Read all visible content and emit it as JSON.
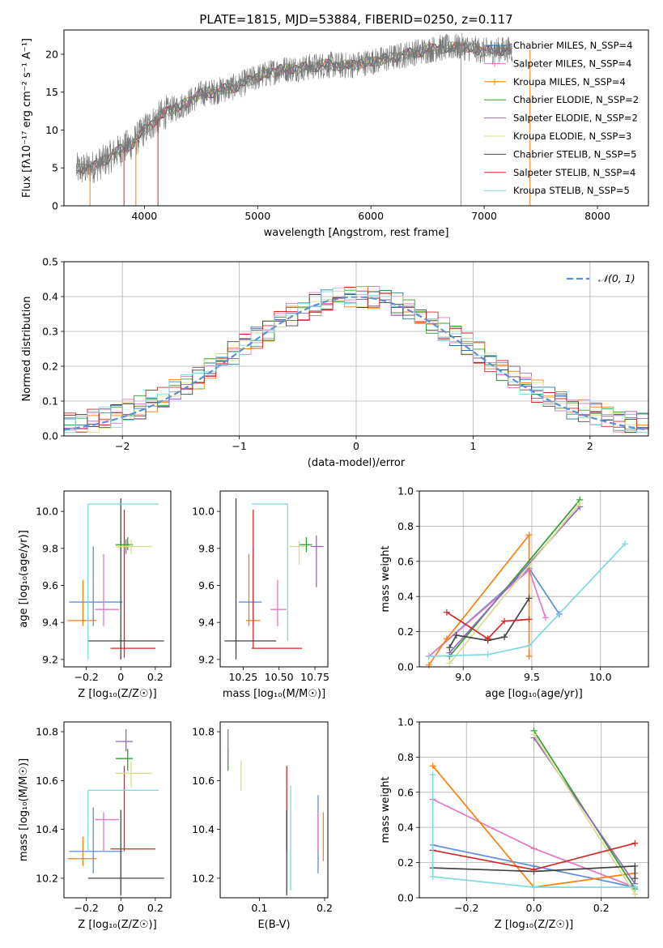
{
  "title": "PLATE=1815, MJD=53884, FIBERID=0250, z=0.117",
  "chart_data": [
    {
      "id": "spectrum",
      "type": "line",
      "xlabel": "wavelength [Angstrom, rest frame]",
      "ylabel": "Flux [fλ10⁻¹⁷ erg cm⁻² s⁻¹ A⁻¹]",
      "xlim": [
        3290,
        8450
      ],
      "ylim": [
        0,
        23.2
      ],
      "xticks": [
        4000,
        5000,
        6000,
        7000,
        8000
      ],
      "yticks": [
        0,
        5,
        10,
        15,
        20
      ],
      "legend": "upper-right",
      "series": [
        {
          "name": "Chabrier MILES, N_SSP=4",
          "color": "#1f77b4"
        },
        {
          "name": "Salpeter MILES, N_SSP=4",
          "color": "#e377c2"
        },
        {
          "name": "Kroupa MILES, N_SSP=4",
          "color": "#ff7f0e"
        },
        {
          "name": "Chabrier ELODIE, N_SSP=2",
          "color": "#2ca02c"
        },
        {
          "name": "Salpeter ELODIE, N_SSP=2",
          "color": "#9467bd"
        },
        {
          "name": "Kroupa ELODIE, N_SSP=3",
          "color": "#dbdb8d"
        },
        {
          "name": "Chabrier STELIB, N_SSP=5",
          "color": "#444444"
        },
        {
          "name": "Salpeter STELIB, N_SSP=4",
          "color": "#d62728"
        },
        {
          "name": "Kroupa STELIB, N_SSP=5",
          "color": "#7fd8e0"
        }
      ],
      "continuum": {
        "x": [
          3400,
          3500,
          3600,
          3700,
          3800,
          3900,
          4000,
          4100,
          4200,
          4300,
          4400,
          4500,
          4600,
          4800,
          5000,
          5200,
          5400,
          5600,
          5800,
          6000,
          6200,
          6400,
          6600,
          6800,
          7000,
          7200
        ],
        "y": [
          4.8,
          4.9,
          5.5,
          6.5,
          7.5,
          8.3,
          10.0,
          11.3,
          12.5,
          13.0,
          13.8,
          14.8,
          15.0,
          15.7,
          17.0,
          18.0,
          18.2,
          18.6,
          18.5,
          19.0,
          19.6,
          20.3,
          20.8,
          21.0,
          20.4,
          20.6
        ]
      }
    },
    {
      "id": "residuals",
      "type": "bar",
      "xlabel": "(data-model)/error",
      "ylabel": "Normed distribution",
      "xlim": [
        -2.5,
        2.5
      ],
      "ylim": [
        0,
        0.5
      ],
      "xticks": [
        -2,
        -1,
        0,
        1,
        2
      ],
      "yticks": [
        0.0,
        0.1,
        0.2,
        0.3,
        0.4,
        0.5
      ],
      "grid": true,
      "legend": "upper-right",
      "reference_label": "𝒩(0, 1)",
      "reference_color": "#5b8fd9",
      "bin_width": 0.1,
      "series_colors": [
        "#1f77b4",
        "#e377c2",
        "#ff7f0e",
        "#2ca02c",
        "#9467bd",
        "#dbdb8d",
        "#444444",
        "#d62728",
        "#7fd8e0"
      ]
    },
    {
      "id": "age-vs-Z",
      "type": "scatter",
      "xlabel": "Z [log₁₀(Z/Z☉)]",
      "ylabel": "age  [log₁₀(age/yr)]",
      "xlim": [
        -0.33,
        0.29
      ],
      "ylim": [
        9.16,
        10.11
      ],
      "xticks": [
        -0.2,
        0.0,
        0.2
      ],
      "yticks": [
        9.2,
        9.4,
        9.6,
        9.8,
        10.0
      ],
      "points": [
        {
          "x": -0.22,
          "xl": -0.31,
          "xr": -0.14,
          "y": 9.41,
          "yl": 9.38,
          "yh": 9.63,
          "color": "#ff7f0e"
        },
        {
          "x": -0.16,
          "xl": -0.3,
          "xr": 0.01,
          "y": 9.51,
          "yl": 9.38,
          "yh": 9.81,
          "color": "#5b8fd9"
        },
        {
          "x": -0.1,
          "xl": -0.15,
          "xr": -0.01,
          "y": 9.47,
          "yl": 9.38,
          "yh": 9.77,
          "color": "#e377c2"
        },
        {
          "x": 0.02,
          "xl": -0.06,
          "xr": 0.2,
          "y": 9.26,
          "yl": 9.21,
          "yh": 10.01,
          "color": "#d62728"
        },
        {
          "x": 0.0,
          "xl": -0.19,
          "xr": 0.25,
          "y": 9.3,
          "yl": 9.2,
          "yh": 10.07,
          "color": "#444444"
        },
        {
          "x": -0.19,
          "xl": -0.19,
          "xr": 0.22,
          "y": 10.04,
          "yl": 9.2,
          "yh": 10.04,
          "color": "#7fd8e0"
        },
        {
          "x": 0.04,
          "xl": -0.03,
          "xr": 0.07,
          "y": 9.82,
          "yl": 9.79,
          "yh": 9.86,
          "color": "#2ca02c"
        },
        {
          "x": 0.03,
          "xl": -0.03,
          "xr": 0.07,
          "y": 9.81,
          "yl": 9.77,
          "yh": 9.85,
          "color": "#9467bd"
        },
        {
          "x": 0.06,
          "xl": -0.03,
          "xr": 0.18,
          "y": 9.81,
          "yl": 9.77,
          "yh": 9.85,
          "color": "#dbdb8d"
        }
      ]
    },
    {
      "id": "age-vs-mass",
      "type": "scatter",
      "xlabel": "mass [log₁₀(M/M☉)]",
      "ylabel": "",
      "xlim": [
        10.09,
        10.84
      ],
      "ylim": [
        9.16,
        10.11
      ],
      "xticks": [
        10.25,
        10.5,
        10.75
      ],
      "yticks": [
        9.2,
        9.4,
        9.6,
        9.8,
        10.0
      ],
      "points": [
        {
          "x": 10.29,
          "xl": 10.27,
          "xr": 10.37,
          "y": 9.41,
          "yl": 9.38,
          "yh": 9.77,
          "color": "#ff7f0e"
        },
        {
          "x": 10.32,
          "xl": 10.22,
          "xr": 10.38,
          "y": 9.51,
          "yl": 9.38,
          "yh": 9.81,
          "color": "#5b8fd9"
        },
        {
          "x": 10.49,
          "xl": 10.44,
          "xr": 10.55,
          "y": 9.47,
          "yl": 9.38,
          "yh": 9.63,
          "color": "#e377c2"
        },
        {
          "x": 10.32,
          "xl": 10.31,
          "xr": 10.66,
          "y": 9.26,
          "yl": 9.26,
          "yh": 10.01,
          "color": "#d62728"
        },
        {
          "x": 10.2,
          "xl": 10.12,
          "xr": 10.48,
          "y": 9.3,
          "yl": 9.2,
          "yh": 10.07,
          "color": "#444444"
        },
        {
          "x": 10.56,
          "xl": 10.31,
          "xr": 10.56,
          "y": 10.04,
          "yl": 9.3,
          "yh": 10.04,
          "color": "#7fd8e0"
        },
        {
          "x": 10.69,
          "xl": 10.64,
          "xr": 10.73,
          "y": 9.82,
          "yl": 9.78,
          "yh": 9.86,
          "color": "#2ca02c"
        },
        {
          "x": 10.76,
          "xl": 10.72,
          "xr": 10.81,
          "y": 9.81,
          "yl": 9.59,
          "yh": 9.87,
          "color": "#9467bd"
        },
        {
          "x": 10.64,
          "xl": 10.57,
          "xr": 10.68,
          "y": 9.81,
          "yl": 9.71,
          "yh": 9.84,
          "color": "#dbdb8d"
        }
      ]
    },
    {
      "id": "mass-weight-vs-age",
      "type": "line",
      "xlabel": "age  [log₁₀(age/yr)]",
      "ylabel": "mass weight",
      "xlim": [
        8.68,
        10.35
      ],
      "ylim": [
        0,
        1.0
      ],
      "xticks": [
        9.0,
        9.5,
        10.0
      ],
      "yticks": [
        0.0,
        0.2,
        0.4,
        0.6,
        0.8,
        1.0
      ],
      "grid": true,
      "series": [
        {
          "color": "#5b8fd9",
          "x": [
            8.75,
            9.48,
            9.7
          ],
          "y": [
            0.06,
            0.56,
            0.3
          ]
        },
        {
          "color": "#e377c2",
          "x": [
            8.75,
            9.48,
            9.6
          ],
          "y": [
            0.06,
            0.55,
            0.28
          ]
        },
        {
          "color": "#ff7f0e",
          "x": [
            8.75,
            8.88,
            9.48,
            9.48
          ],
          "y": [
            0.01,
            0.16,
            0.75,
            0.06
          ]
        },
        {
          "color": "#2ca02c",
          "x": [
            8.9,
            9.85
          ],
          "y": [
            0.06,
            0.95
          ]
        },
        {
          "color": "#9467bd",
          "x": [
            8.9,
            9.85
          ],
          "y": [
            0.08,
            0.91
          ]
        },
        {
          "color": "#dbdb8d",
          "x": [
            8.9,
            9.85
          ],
          "y": [
            0.02,
            0.93
          ]
        },
        {
          "color": "#444444",
          "x": [
            8.9,
            8.95,
            9.18,
            9.3,
            9.48
          ],
          "y": [
            0.11,
            0.18,
            0.15,
            0.17,
            0.39
          ]
        },
        {
          "color": "#d62728",
          "x": [
            8.88,
            9.18,
            9.3,
            9.48
          ],
          "y": [
            0.31,
            0.16,
            0.26,
            0.27
          ]
        },
        {
          "color": "#7fd8e0",
          "x": [
            8.75,
            9.18,
            9.48,
            10.18
          ],
          "y": [
            0.06,
            0.07,
            0.12,
            0.7
          ]
        }
      ]
    },
    {
      "id": "mass-vs-Z",
      "type": "scatter",
      "xlabel": "Z [log₁₀(Z/Z☉)]",
      "ylabel": "mass [log₁₀(M/M☉)]",
      "xlim": [
        -0.33,
        0.29
      ],
      "ylim": [
        10.12,
        10.84
      ],
      "xticks": [
        -0.2,
        0.0,
        0.2
      ],
      "yticks": [
        10.2,
        10.4,
        10.6,
        10.8
      ],
      "points": [
        {
          "x": -0.22,
          "xl": -0.31,
          "xr": -0.14,
          "y": 10.28,
          "yl": 10.25,
          "yh": 10.37,
          "color": "#ff7f0e"
        },
        {
          "x": -0.16,
          "xl": -0.3,
          "xr": 0.01,
          "y": 10.31,
          "yl": 10.22,
          "yh": 10.49,
          "color": "#5b8fd9"
        },
        {
          "x": -0.1,
          "xl": -0.15,
          "xr": -0.01,
          "y": 10.44,
          "yl": 10.31,
          "yh": 10.47,
          "color": "#e377c2"
        },
        {
          "x": 0.02,
          "xl": -0.06,
          "xr": 0.2,
          "y": 10.32,
          "yl": 10.31,
          "yh": 10.66,
          "color": "#d62728"
        },
        {
          "x": 0.0,
          "xl": -0.19,
          "xr": 0.25,
          "y": 10.2,
          "yl": 10.13,
          "yh": 10.48,
          "color": "#444444"
        },
        {
          "x": -0.19,
          "xl": -0.19,
          "xr": 0.22,
          "y": 10.56,
          "yl": 10.31,
          "yh": 10.56,
          "color": "#7fd8e0"
        },
        {
          "x": 0.04,
          "xl": -0.03,
          "xr": 0.07,
          "y": 10.69,
          "yl": 10.64,
          "yh": 10.73,
          "color": "#2ca02c"
        },
        {
          "x": 0.03,
          "xl": -0.03,
          "xr": 0.07,
          "y": 10.76,
          "yl": 10.72,
          "yh": 10.81,
          "color": "#9467bd"
        },
        {
          "x": 0.06,
          "xl": -0.03,
          "xr": 0.18,
          "y": 10.63,
          "yl": 10.57,
          "yh": 10.68,
          "color": "#dbdb8d"
        }
      ]
    },
    {
      "id": "mass-vs-EBV",
      "type": "scatter",
      "xlabel": "E(B-V)",
      "ylabel": "",
      "xlim": [
        0.04,
        0.205
      ],
      "ylim": [
        10.12,
        10.84
      ],
      "xticks": [
        0.1,
        0.2
      ],
      "yticks": [
        10.2,
        10.4,
        10.6,
        10.8
      ],
      "points": [
        {
          "x": 0.198,
          "yl": 10.27,
          "yh": 10.47,
          "color": "#ff7f0e"
        },
        {
          "x": 0.19,
          "yl": 10.22,
          "yh": 10.54,
          "color": "#5b8fd9"
        },
        {
          "x": 0.19,
          "yl": 10.31,
          "yh": 10.47,
          "color": "#e377c2"
        },
        {
          "x": 0.142,
          "yl": 10.31,
          "yh": 10.66,
          "color": "#d62728"
        },
        {
          "x": 0.142,
          "yl": 10.13,
          "yh": 10.48,
          "color": "#444444"
        },
        {
          "x": 0.148,
          "yl": 10.15,
          "yh": 10.58,
          "color": "#7fd8e0"
        },
        {
          "x": 0.052,
          "yl": 10.64,
          "yh": 10.73,
          "color": "#2ca02c"
        },
        {
          "x": 0.052,
          "yl": 10.67,
          "yh": 10.81,
          "color": "#9467bd"
        },
        {
          "x": 0.072,
          "yl": 10.56,
          "yh": 10.68,
          "color": "#dbdb8d"
        }
      ]
    },
    {
      "id": "mass-weight-vs-Z",
      "type": "line",
      "xlabel": "Z [log₁₀(Z/Z☉)]",
      "ylabel": "mass weight",
      "xlim": [
        -0.34,
        0.34
      ],
      "ylim": [
        0,
        1.0
      ],
      "xticks": [
        -0.2,
        0.0,
        0.2
      ],
      "yticks": [
        0.0,
        0.2,
        0.4,
        0.6,
        0.8,
        1.0
      ],
      "grid": true,
      "series": [
        {
          "color": "#5b8fd9",
          "x": [
            -0.3,
            0.0,
            0.3
          ],
          "y": [
            0.3,
            0.18,
            0.06
          ]
        },
        {
          "color": "#e377c2",
          "x": [
            -0.3,
            0.0,
            0.3
          ],
          "y": [
            0.56,
            0.28,
            0.06
          ]
        },
        {
          "color": "#ff7f0e",
          "x": [
            -0.3,
            0.0,
            0.3
          ],
          "y": [
            0.75,
            0.06,
            0.14
          ]
        },
        {
          "color": "#2ca02c",
          "x": [
            0.0,
            0.3
          ],
          "y": [
            0.95,
            0.05
          ]
        },
        {
          "color": "#9467bd",
          "x": [
            0.0,
            0.3
          ],
          "y": [
            0.91,
            0.08
          ]
        },
        {
          "color": "#dbdb8d",
          "x": [
            0.0,
            0.3
          ],
          "y": [
            0.93,
            0.02
          ]
        },
        {
          "color": "#444444",
          "x": [
            -0.3,
            0.0,
            0.3,
            0.3
          ],
          "y": [
            0.17,
            0.15,
            0.18,
            0.11
          ]
        },
        {
          "color": "#d62728",
          "x": [
            -0.3,
            0.0,
            0.3
          ],
          "y": [
            0.27,
            0.16,
            0.31
          ]
        },
        {
          "color": "#7fd8e0",
          "x": [
            -0.3,
            -0.3,
            0.0,
            0.3
          ],
          "y": [
            0.7,
            0.12,
            0.06,
            0.06
          ]
        }
      ]
    }
  ]
}
